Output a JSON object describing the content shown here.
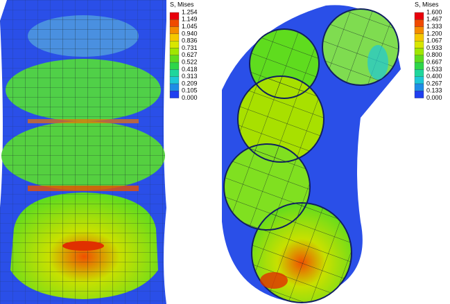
{
  "legends": [
    {
      "title": "S, Mises",
      "labels": [
        "1.254",
        "1.149",
        "1.045",
        "0.940",
        "0.836",
        "0.731",
        "0.627",
        "0.522",
        "0.418",
        "0.313",
        "0.209",
        "0.105",
        "0.000"
      ],
      "colors": [
        "#e8000b",
        "#f04a00",
        "#f58c00",
        "#f5c800",
        "#d8e600",
        "#a0e600",
        "#5fdc1e",
        "#2ed64a",
        "#1ed69c",
        "#1ec8d6",
        "#1e8ce6",
        "#1f3ff0"
      ]
    },
    {
      "title": "S, Mises",
      "labels": [
        "1.600",
        "1.467",
        "1.333",
        "1.200",
        "1.067",
        "0.933",
        "0.800",
        "0.667",
        "0.533",
        "0.400",
        "0.267",
        "0.133",
        "0.000"
      ],
      "colors": [
        "#e8000b",
        "#f04a00",
        "#f58c00",
        "#f5c800",
        "#d8e600",
        "#a0e600",
        "#5fdc1e",
        "#2ed64a",
        "#1ed69c",
        "#1ec8d6",
        "#1e8ce6",
        "#1f3ff0"
      ]
    }
  ]
}
